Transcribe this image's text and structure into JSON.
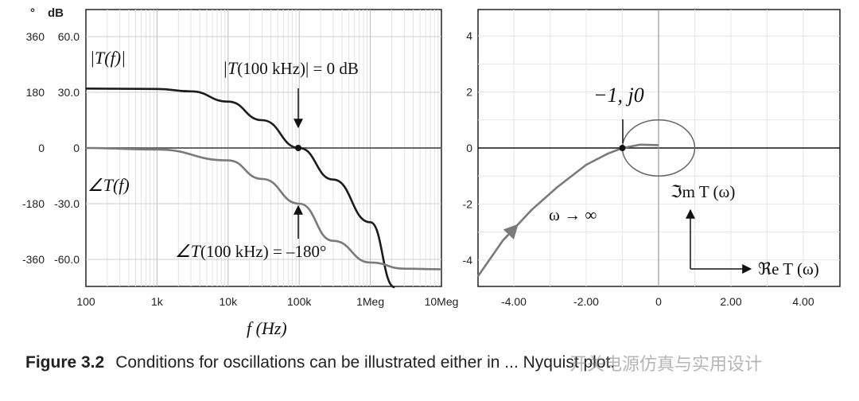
{
  "chart_data": [
    {
      "type": "line",
      "scale": "log-x",
      "y_units_left": "°",
      "y_units_right": "dB",
      "xlim": [
        100,
        10000000
      ],
      "x_ticks": [
        "100",
        "1k",
        "10k",
        "100k",
        "1Meg",
        "10Meg"
      ],
      "x_tick_values": [
        100,
        1000,
        10000,
        100000,
        1000000,
        10000000
      ],
      "y_ticks_phase": [
        "360",
        "180",
        "0",
        "-180",
        "-360"
      ],
      "y_ticks_db": [
        "60.0",
        "30.0",
        "0",
        "-30.0",
        "-60.0"
      ],
      "ylim_db": [
        -75,
        75
      ],
      "xlabel": "f (Hz)",
      "series": [
        {
          "name": "|T(f)|",
          "color": "#1c1c1c",
          "unit": "dB",
          "x": [
            100,
            1000,
            3000,
            10000,
            30000,
            100000,
            300000,
            1000000,
            2200000
          ],
          "y": [
            32,
            31.8,
            30.5,
            25,
            15,
            0,
            -17,
            -40,
            -75
          ]
        },
        {
          "name": "∠T(f)",
          "color": "#7a7a7a",
          "unit": "deg",
          "x": [
            100,
            1000,
            10000,
            30000,
            100000,
            300000,
            1000000,
            3000000,
            10000000
          ],
          "y": [
            0,
            -5,
            -40,
            -100,
            -180,
            -300,
            -370,
            -390,
            -392
          ]
        }
      ],
      "annotations": [
        {
          "text_left": "|T",
          "arg": "(100 kHz)",
          "text_right": "| = 0 dB",
          "x": 100000,
          "y": 0
        },
        {
          "text_left": "∠T",
          "arg": "(100 kHz)",
          "text_right": " = –180°",
          "x": 100000,
          "y": -180
        }
      ]
    },
    {
      "type": "line",
      "xlim": [
        -5,
        5
      ],
      "ylim": [
        -4.6,
        5
      ],
      "x_ticks": [
        "-4.00",
        "-2.00",
        "0",
        "2.00",
        "4.00"
      ],
      "x_tick_values": [
        -4,
        -2,
        0,
        2,
        4
      ],
      "y_ticks": [
        "4",
        "2",
        "0",
        "-2",
        "-4"
      ],
      "y_tick_values": [
        4,
        2,
        0,
        -2,
        -4
      ],
      "series": [
        {
          "name": "Nyquist",
          "color": "#7a7a7a",
          "x": [
            -5,
            -4.3,
            -3.5,
            -2.8,
            -2.0,
            -1.4,
            -1.0,
            -0.5,
            0
          ],
          "y": [
            -4.6,
            -3.3,
            -2.2,
            -1.4,
            -0.6,
            -0.2,
            0,
            0.12,
            0.1
          ]
        }
      ],
      "unit_circle": {
        "center": [
          0,
          0
        ],
        "radius": 1
      },
      "point": [
        -1,
        0
      ],
      "point_label": "−1, j0",
      "arrow_label": "ω → ∞",
      "im_label": "ℑm T (ω)",
      "re_label": "ℜe T (ω)"
    }
  ],
  "caption": {
    "label": "Figure 3.2",
    "text": "Conditions for oscillations can be illustrated either in ... Nyquist plot.",
    "watermark": "开关电源仿真与实用设计"
  }
}
